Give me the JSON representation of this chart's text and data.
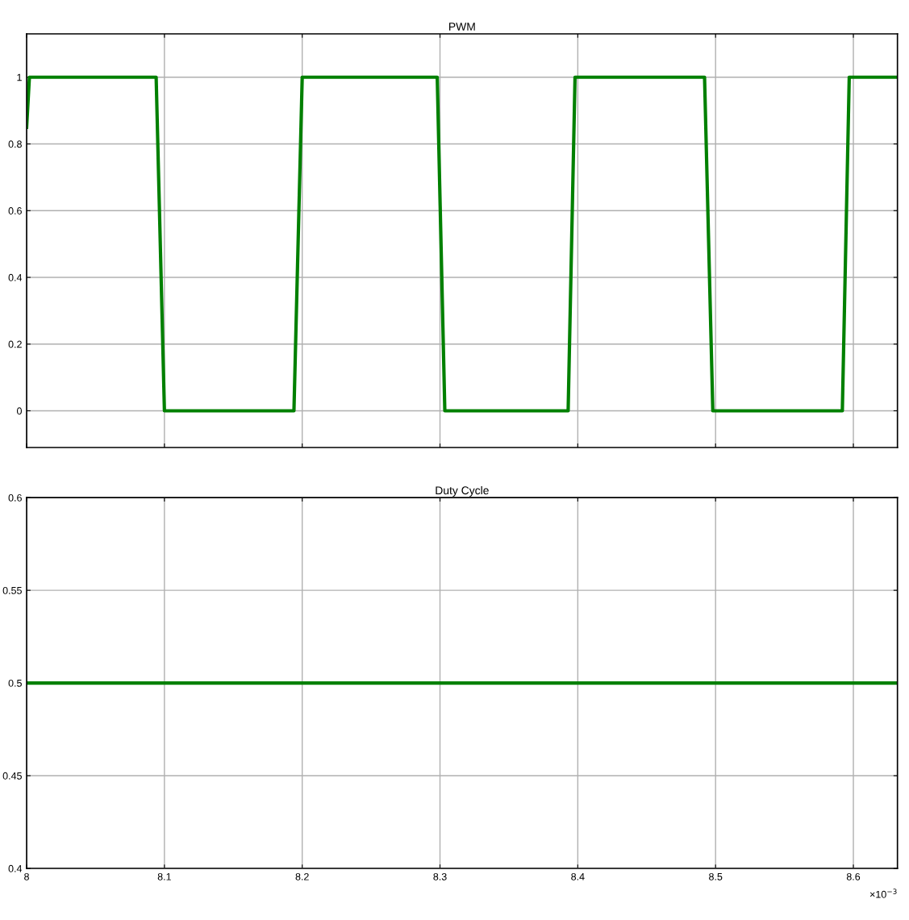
{
  "chart_data": [
    {
      "type": "line",
      "title": "PWM",
      "x": [
        8,
        8.002,
        8.094,
        8.1,
        8.194,
        8.2,
        8.298,
        8.3035,
        8.393,
        8.398,
        8.492,
        8.498,
        8.592,
        8.597,
        8.632
      ],
      "series": [
        {
          "color": "#008000",
          "values": [
            0.85,
            1,
            1,
            0,
            0,
            1,
            1,
            0,
            0,
            1,
            1,
            0,
            0,
            1,
            1
          ]
        }
      ],
      "xlim": [
        8,
        8.632
      ],
      "xticks": [
        8,
        8.1,
        8.2,
        8.3,
        8.4,
        8.5,
        8.6
      ],
      "ylim": [
        -0.11,
        1.13
      ],
      "yticks": [
        0,
        0.2,
        0.4,
        0.6,
        0.8,
        1
      ],
      "grid": true,
      "tick_labels": "y",
      "marker": "none",
      "line_style": "solid"
    },
    {
      "type": "line",
      "title": "Duty Cycle",
      "x": [
        8,
        8.632
      ],
      "series": [
        {
          "color": "#008000",
          "values": [
            0.5,
            0.5
          ]
        }
      ],
      "xlim": [
        8,
        8.632
      ],
      "xticks": [
        8,
        8.1,
        8.2,
        8.3,
        8.4,
        8.5,
        8.6
      ],
      "ylim": [
        0.4,
        0.6
      ],
      "yticks": [
        0.4,
        0.45,
        0.5,
        0.55,
        0.6
      ],
      "grid": true,
      "marker": "none",
      "line_style": "solid",
      "annotations": [
        "×10$^{−3}$"
      ]
    }
  ]
}
